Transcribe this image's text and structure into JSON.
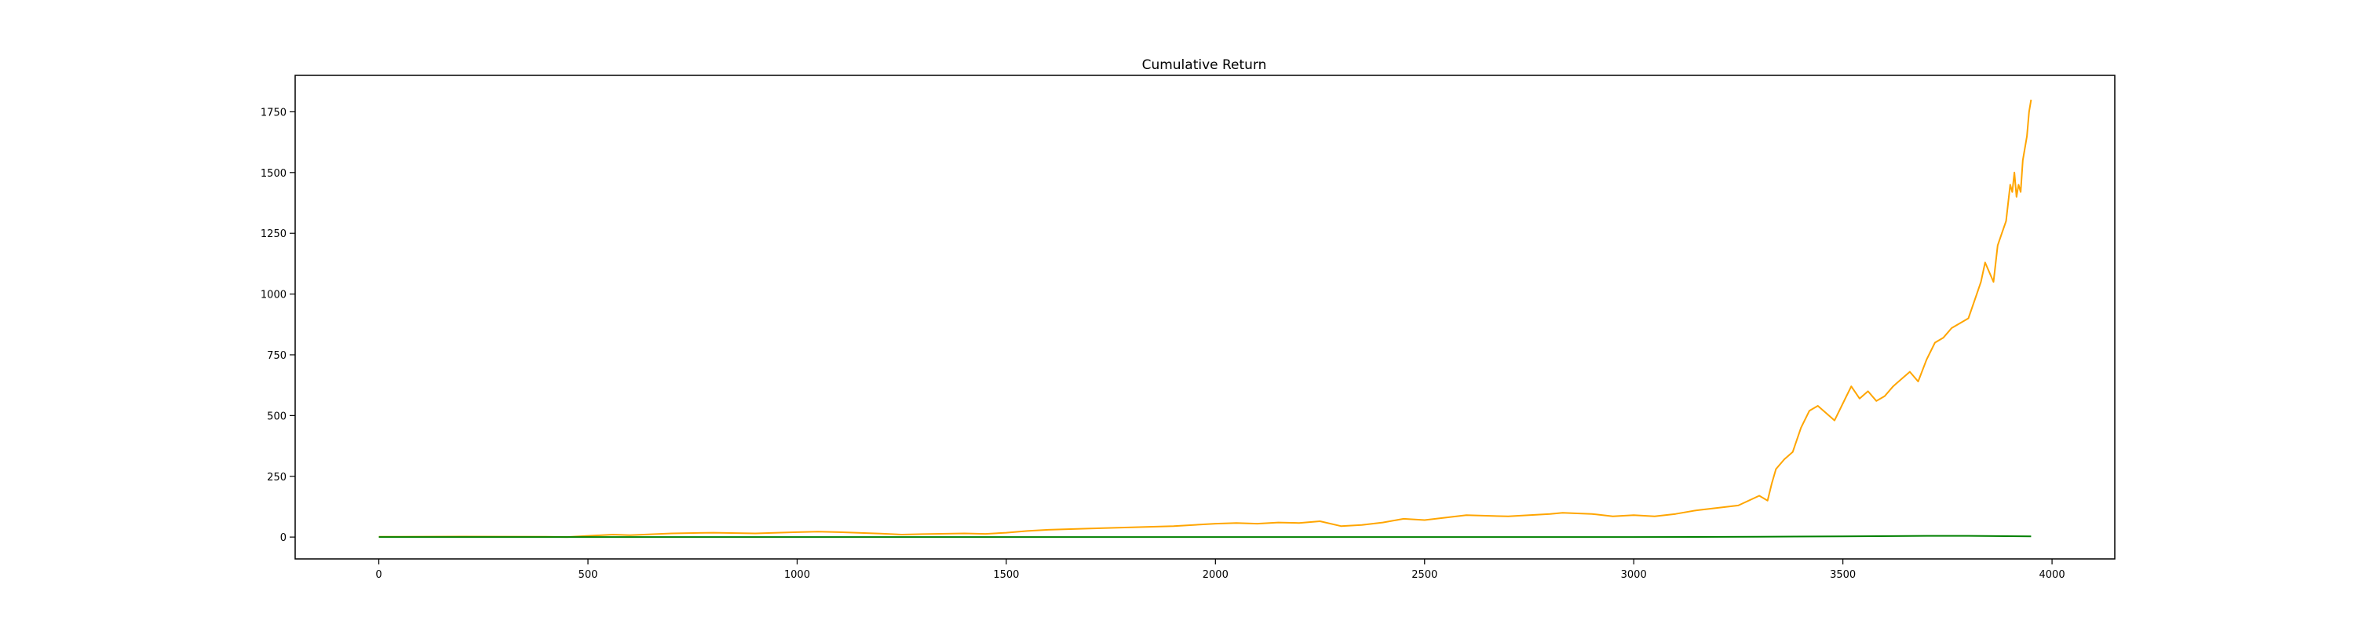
{
  "chart_data": {
    "type": "line",
    "title": "Cumulative Return",
    "xlabel": "",
    "ylabel": "",
    "xlim": [
      -200,
      4150
    ],
    "ylim": [
      -90,
      1900
    ],
    "xticks": [
      0,
      500,
      1000,
      1500,
      2000,
      2500,
      3000,
      3500,
      4000
    ],
    "yticks": [
      0,
      250,
      500,
      750,
      1000,
      1250,
      1500,
      1750
    ],
    "grid": false,
    "legend": "none",
    "series": [
      {
        "color": "#ffa500",
        "x": [
          0,
          200,
          400,
          450,
          500,
          560,
          600,
          700,
          800,
          900,
          1000,
          1050,
          1100,
          1200,
          1250,
          1300,
          1400,
          1450,
          1500,
          1550,
          1600,
          1700,
          1800,
          1900,
          2000,
          2050,
          2100,
          2150,
          2200,
          2250,
          2300,
          2350,
          2400,
          2450,
          2500,
          2550,
          2600,
          2700,
          2800,
          2830,
          2900,
          2950,
          3000,
          3050,
          3100,
          3150,
          3200,
          3250,
          3300,
          3320,
          3330,
          3340,
          3360,
          3380,
          3400,
          3420,
          3440,
          3460,
          3480,
          3500,
          3520,
          3540,
          3560,
          3580,
          3600,
          3620,
          3640,
          3660,
          3680,
          3700,
          3720,
          3740,
          3760,
          3780,
          3800,
          3820,
          3830,
          3840,
          3860,
          3870,
          3880,
          3890,
          3900,
          3905,
          3910,
          3915,
          3920,
          3925,
          3930,
          3940,
          3945,
          3950
        ],
        "values": [
          1,
          2,
          1,
          0,
          5,
          10,
          8,
          15,
          18,
          15,
          20,
          22,
          20,
          14,
          10,
          12,
          15,
          13,
          18,
          25,
          30,
          35,
          40,
          45,
          55,
          58,
          55,
          60,
          58,
          65,
          45,
          50,
          60,
          75,
          70,
          80,
          90,
          85,
          95,
          100,
          95,
          85,
          90,
          85,
          95,
          110,
          120,
          130,
          170,
          150,
          220,
          280,
          320,
          350,
          450,
          520,
          540,
          510,
          480,
          550,
          620,
          570,
          600,
          560,
          580,
          620,
          650,
          680,
          640,
          730,
          800,
          820,
          860,
          880,
          900,
          1000,
          1050,
          1130,
          1050,
          1200,
          1250,
          1300,
          1450,
          1420,
          1500,
          1400,
          1450,
          1420,
          1550,
          1650,
          1750,
          1800
        ]
      },
      {
        "color": "#008000",
        "x": [
          0,
          500,
          1000,
          1500,
          2000,
          2500,
          3000,
          3300,
          3500,
          3700,
          3800,
          3950
        ],
        "values": [
          0,
          0,
          0,
          0,
          0,
          0,
          0,
          1,
          3,
          5,
          5,
          3
        ]
      }
    ]
  }
}
